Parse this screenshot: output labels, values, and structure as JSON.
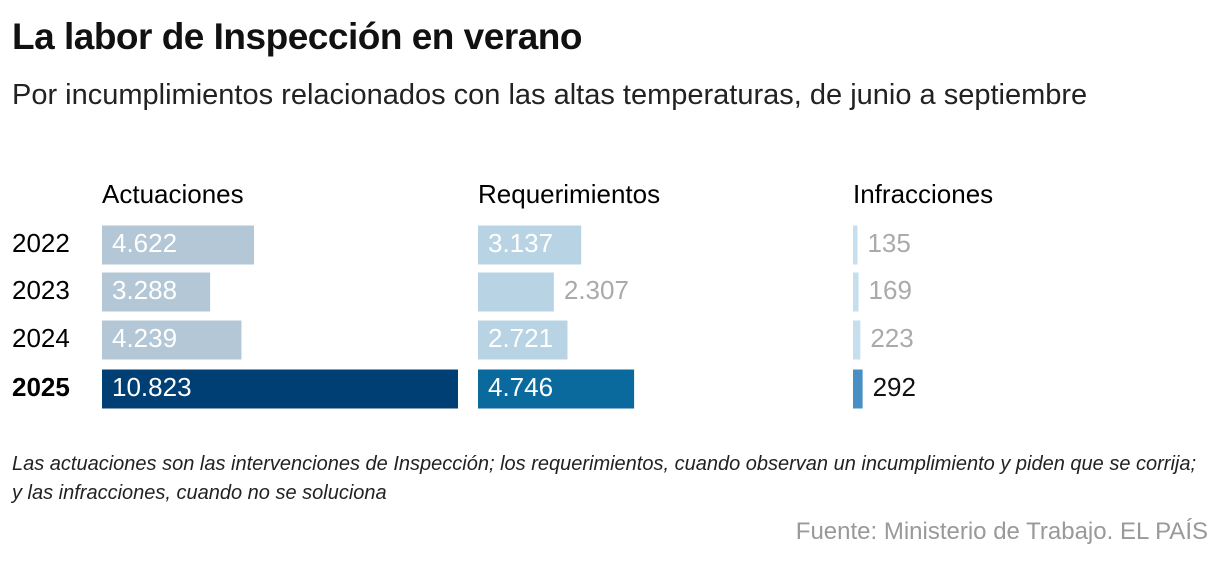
{
  "title": "La labor de Inspección en verano",
  "subtitle": "Por incumplimientos relacionados con las altas temperaturas, de junio a septiembre",
  "note": "Las actuaciones son las intervenciones de Inspección; los requerimientos, cuando observan un incumplimiento y piden que se corrija; y las infracciones, cuando no se soluciona",
  "source": "Fuente: Ministerio de Trabajo. EL PAÍS",
  "chart_data": {
    "type": "bar",
    "orientation": "horizontal",
    "layout": "small-multiples",
    "categories": [
      "2022",
      "2023",
      "2024",
      "2025"
    ],
    "highlight": 3,
    "series": [
      {
        "name": "Actuaciones",
        "values": [
          4622,
          3288,
          4239,
          10823
        ],
        "value_labels": [
          "4.622",
          "3.288",
          "4.239",
          "10.823"
        ],
        "colors": [
          "#b3c7d6",
          "#b3c7d6",
          "#b3c7d6",
          "#003f73"
        ]
      },
      {
        "name": "Requerimientos",
        "values": [
          3137,
          2307,
          2721,
          4746
        ],
        "value_labels": [
          "3.137",
          "2.307",
          "2.721",
          "4.746"
        ],
        "colors": [
          "#b8d4e4",
          "#b8d4e4",
          "#b8d4e4",
          "#0a6a9e"
        ]
      },
      {
        "name": "Infracciones",
        "values": [
          135,
          169,
          223,
          292
        ],
        "value_labels": [
          "135",
          "169",
          "223",
          "292"
        ],
        "colors": [
          "#c6dfef",
          "#c6dfef",
          "#c6dfef",
          "#4a8fc4"
        ]
      }
    ]
  }
}
